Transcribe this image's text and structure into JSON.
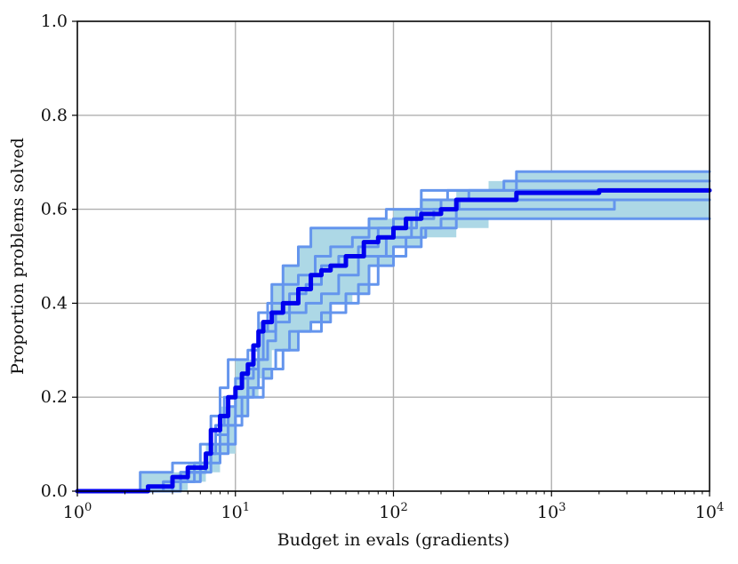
{
  "chart_data": {
    "type": "line",
    "xlabel": "Budget in evals (gradients)",
    "ylabel": "Proportion problems solved",
    "xscale": "log",
    "xlim": [
      1,
      10000
    ],
    "ylim": [
      0,
      1.0
    ],
    "grid": true,
    "x_ticks": [
      {
        "value": 1,
        "base": "10",
        "exp": "0"
      },
      {
        "value": 10,
        "base": "10",
        "exp": "1"
      },
      {
        "value": 100,
        "base": "10",
        "exp": "2"
      },
      {
        "value": 1000,
        "base": "10",
        "exp": "3"
      },
      {
        "value": 10000,
        "base": "10",
        "exp": "4"
      }
    ],
    "y_ticks": [
      "0.0",
      "0.2",
      "0.4",
      "0.6",
      "0.8",
      "1.0"
    ],
    "colors": {
      "mean_line": "#0000ee",
      "run_lines": "#6495ed",
      "band_fill": "#add8e6",
      "grid": "#b0b0b0"
    },
    "band": {
      "x": [
        1,
        2.2,
        2.5,
        3.5,
        5,
        6.5,
        8,
        10,
        12,
        14,
        17,
        20,
        25,
        30,
        40,
        55,
        70,
        100,
        150,
        250,
        400,
        600,
        1000,
        2000,
        5000,
        10000
      ],
      "upper": [
        0,
        0,
        0.04,
        0.04,
        0.06,
        0.1,
        0.18,
        0.28,
        0.28,
        0.36,
        0.44,
        0.48,
        0.52,
        0.56,
        0.56,
        0.56,
        0.58,
        0.6,
        0.62,
        0.64,
        0.66,
        0.68,
        0.68,
        0.68,
        0.68,
        0.68
      ],
      "lower": [
        0,
        0,
        0,
        0,
        0.02,
        0.04,
        0.08,
        0.16,
        0.2,
        0.24,
        0.3,
        0.3,
        0.34,
        0.36,
        0.4,
        0.42,
        0.48,
        0.52,
        0.54,
        0.56,
        0.58,
        0.58,
        0.58,
        0.58,
        0.58,
        0.58
      ]
    },
    "series": [
      {
        "role": "mean",
        "x": [
          1,
          2.2,
          2.8,
          3.5,
          4,
          5,
          5.5,
          6.5,
          7,
          8,
          9,
          10,
          11,
          12,
          13,
          14,
          15,
          17,
          20,
          25,
          30,
          35,
          40,
          50,
          60,
          65,
          80,
          100,
          120,
          150,
          200,
          250,
          300,
          400,
          600,
          1000,
          2000,
          5000,
          10000
        ],
        "y": [
          0,
          0,
          0.01,
          0.01,
          0.03,
          0.05,
          0.05,
          0.08,
          0.13,
          0.16,
          0.2,
          0.22,
          0.25,
          0.27,
          0.31,
          0.34,
          0.36,
          0.38,
          0.4,
          0.43,
          0.46,
          0.47,
          0.48,
          0.5,
          0.5,
          0.53,
          0.54,
          0.56,
          0.58,
          0.59,
          0.6,
          0.62,
          0.62,
          0.62,
          0.635,
          0.635,
          0.64,
          0.64,
          0.64
        ]
      },
      {
        "role": "run",
        "x": [
          1,
          2.2,
          2.5,
          3.5,
          4,
          5,
          6,
          7,
          8,
          9,
          10,
          12,
          14,
          17,
          20,
          25,
          30,
          40,
          55,
          70,
          90,
          110,
          150,
          600,
          10000
        ],
        "y": [
          0,
          0,
          0.04,
          0.04,
          0.06,
          0.06,
          0.1,
          0.16,
          0.22,
          0.28,
          0.28,
          0.3,
          0.38,
          0.44,
          0.48,
          0.52,
          0.56,
          0.56,
          0.56,
          0.58,
          0.6,
          0.6,
          0.64,
          0.68,
          0.68
        ]
      },
      {
        "role": "run",
        "x": [
          1,
          2.5,
          3.5,
          4.5,
          5.5,
          6.5,
          7.5,
          8.5,
          10,
          12,
          14,
          16,
          20,
          25,
          32,
          40,
          55,
          70,
          100,
          150,
          220,
          500,
          10000
        ],
        "y": [
          0,
          0,
          0.02,
          0.04,
          0.04,
          0.08,
          0.14,
          0.2,
          0.24,
          0.26,
          0.34,
          0.4,
          0.44,
          0.46,
          0.5,
          0.52,
          0.54,
          0.56,
          0.58,
          0.62,
          0.64,
          0.66,
          0.66
        ]
      },
      {
        "role": "run",
        "x": [
          1,
          2.8,
          3.5,
          4.5,
          5.5,
          6.5,
          7.5,
          9,
          10,
          12,
          13,
          15,
          18,
          22,
          28,
          35,
          45,
          60,
          80,
          100,
          140,
          200,
          300,
          10000
        ],
        "y": [
          0,
          0,
          0.02,
          0.04,
          0.06,
          0.08,
          0.12,
          0.18,
          0.2,
          0.24,
          0.28,
          0.34,
          0.38,
          0.42,
          0.44,
          0.48,
          0.5,
          0.52,
          0.56,
          0.56,
          0.6,
          0.62,
          0.64,
          0.64
        ]
      },
      {
        "role": "run",
        "x": [
          1,
          3,
          4,
          5,
          6,
          7,
          8,
          10,
          12,
          14,
          16,
          18,
          22,
          28,
          35,
          45,
          60,
          90,
          130,
          180,
          260,
          10000
        ],
        "y": [
          0,
          0,
          0.02,
          0.04,
          0.06,
          0.1,
          0.14,
          0.2,
          0.22,
          0.28,
          0.32,
          0.36,
          0.38,
          0.4,
          0.42,
          0.46,
          0.5,
          0.54,
          0.58,
          0.6,
          0.62,
          0.62
        ]
      },
      {
        "role": "run",
        "x": [
          1,
          3.2,
          4,
          5,
          6,
          7,
          9,
          11,
          13,
          15,
          18,
          22,
          30,
          40,
          60,
          80,
          120,
          160,
          250,
          2500,
          10000
        ],
        "y": [
          0,
          0,
          0.02,
          0.02,
          0.04,
          0.08,
          0.14,
          0.2,
          0.22,
          0.26,
          0.3,
          0.34,
          0.36,
          0.4,
          0.44,
          0.5,
          0.54,
          0.56,
          0.6,
          0.62,
          0.62
        ]
      },
      {
        "role": "run",
        "x": [
          1,
          3.5,
          4.5,
          5.5,
          6.5,
          8,
          10,
          12,
          15,
          17,
          20,
          25,
          35,
          50,
          70,
          100,
          150,
          200,
          10000
        ],
        "y": [
          0,
          0,
          0.02,
          0.04,
          0.06,
          0.1,
          0.16,
          0.2,
          0.24,
          0.26,
          0.3,
          0.34,
          0.38,
          0.42,
          0.48,
          0.52,
          0.56,
          0.58,
          0.58
        ]
      }
    ]
  }
}
